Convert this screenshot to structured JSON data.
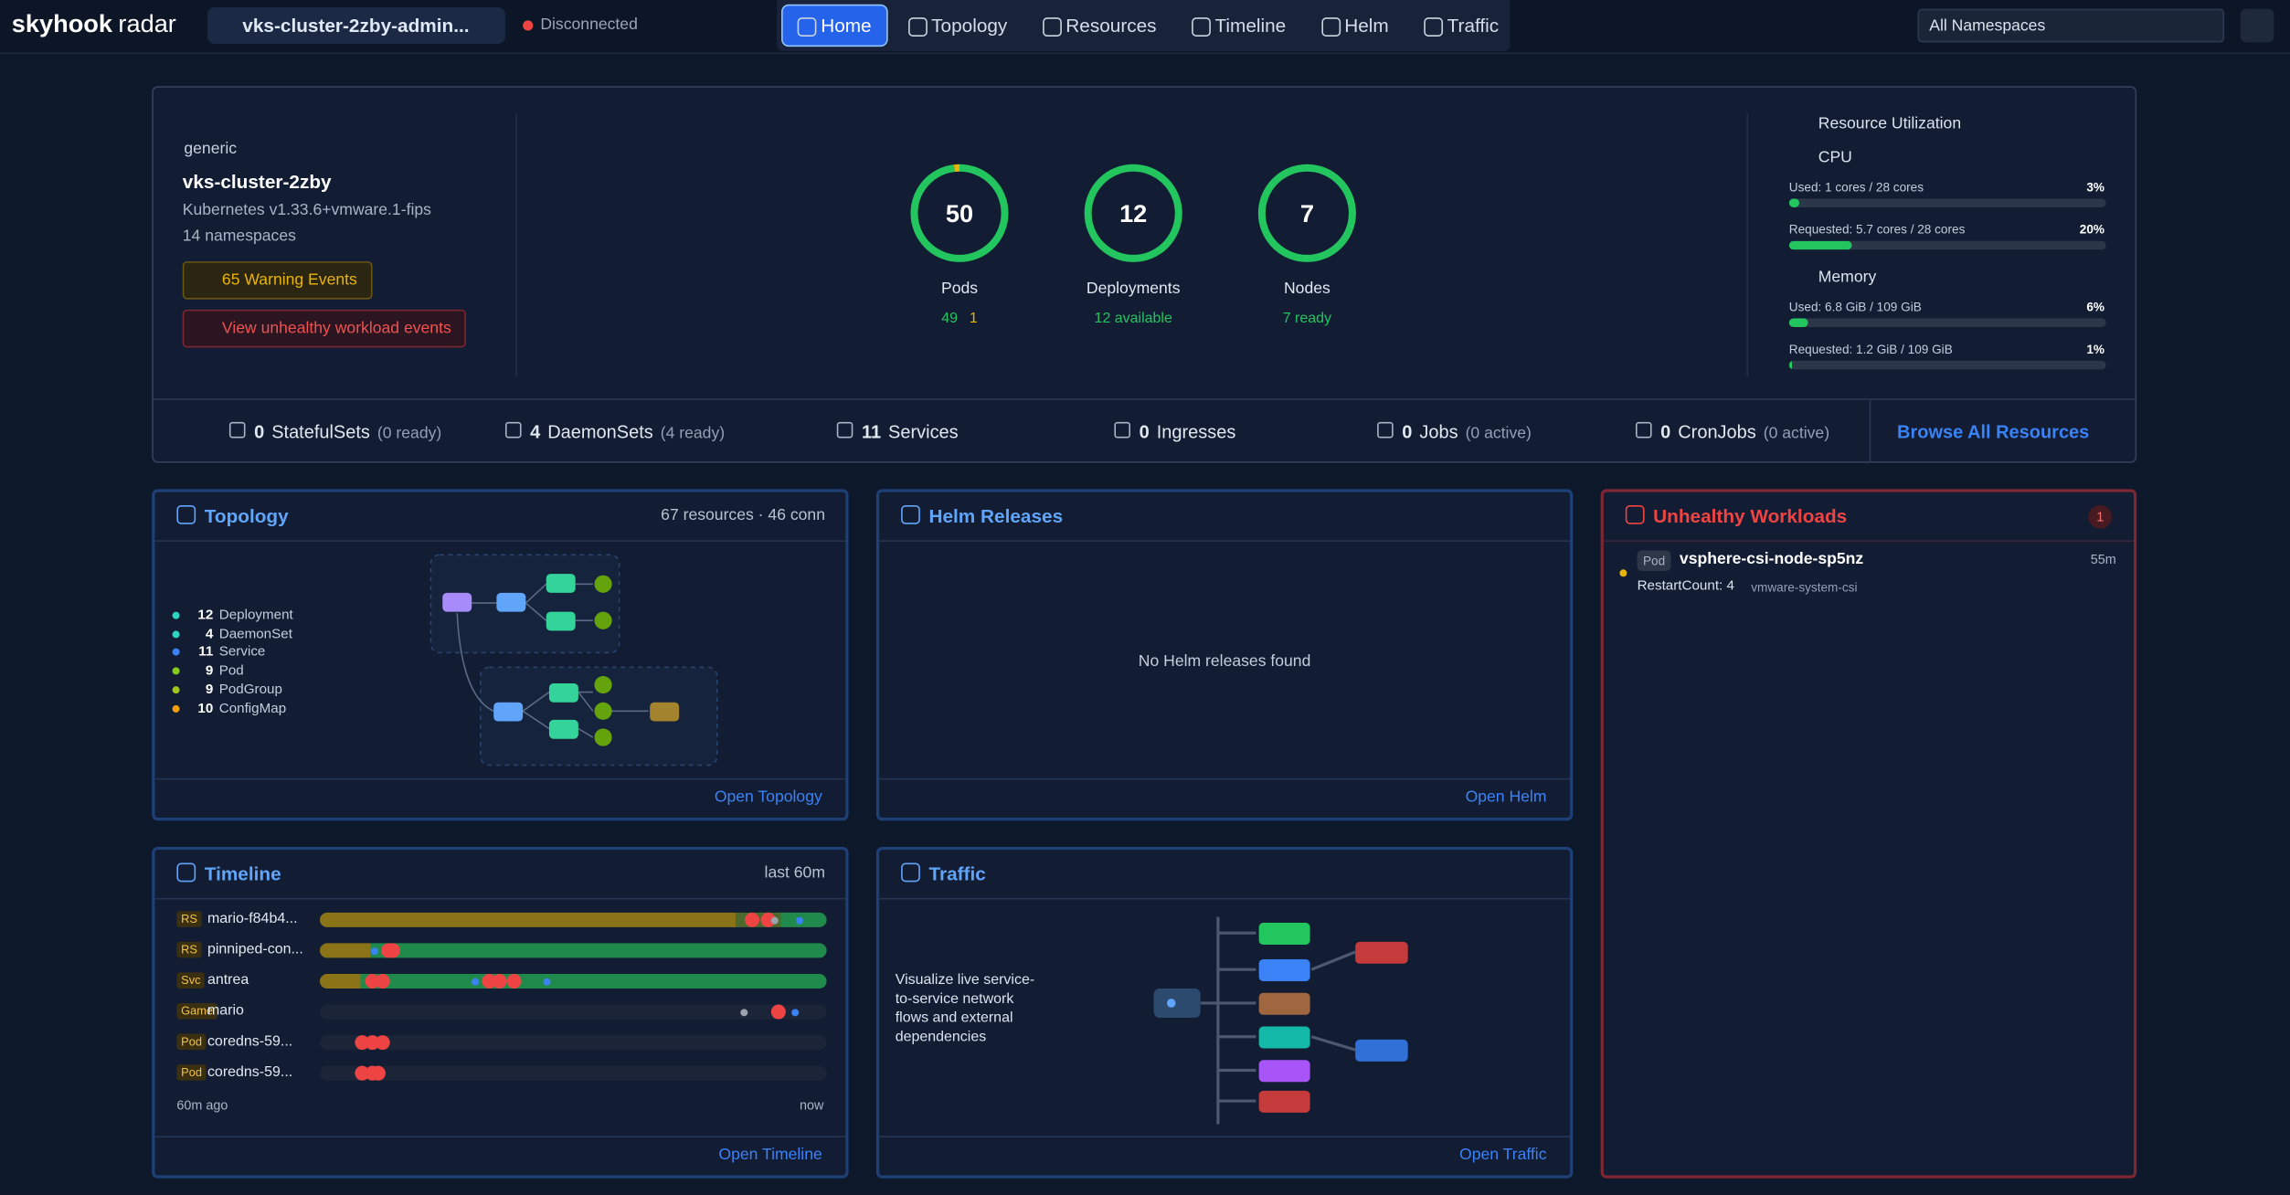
{
  "header": {
    "logo": "skyhook",
    "product": "radar",
    "cluster": "vks-cluster-2zby-admin...",
    "status": "Disconnected",
    "nav": [
      "Home",
      "Topology",
      "Resources",
      "Timeline",
      "Helm",
      "Traffic"
    ],
    "namespace": "All Namespaces"
  },
  "cluster": {
    "type": "generic",
    "name": "vks-cluster-2zby",
    "version": "Kubernetes v1.33.6+vmware.1-fips",
    "namespaces": "14 namespaces",
    "warning": "65 Warning Events",
    "unhealthy": "View unhealthy workload events"
  },
  "stats": [
    {
      "value": 50,
      "label": "Pods",
      "ok": 49,
      "warn": 1
    },
    {
      "value": 12,
      "label": "Deployments",
      "status": "12 available"
    },
    {
      "value": 7,
      "label": "Nodes",
      "status": "7 ready"
    }
  ],
  "utilization": {
    "title": "Resource Utilization",
    "groups": [
      {
        "name": "CPU",
        "rows": [
          {
            "text": "Used: 1 cores / 28 cores",
            "percent": {
              "value": 3,
              "label": "3%"
            }
          },
          {
            "text": "Requested: 5.7 cores / 28 cores",
            "percent": {
              "value": 20,
              "label": "20%"
            }
          }
        ]
      },
      {
        "name": "Memory",
        "rows": [
          {
            "text": "Used: 6.8 GiB / 109 GiB",
            "percent": {
              "value": 6,
              "label": "6%"
            }
          },
          {
            "text": "Requested: 1.2 GiB / 109 GiB",
            "percent": {
              "value": 1,
              "label": "1%"
            }
          }
        ]
      }
    ]
  },
  "resources": {
    "items": [
      {
        "count": 0,
        "name": "StatefulSets",
        "note": "(0 ready)"
      },
      {
        "count": 4,
        "name": "DaemonSets",
        "note": "(4 ready)"
      },
      {
        "count": 11,
        "name": "Services"
      },
      {
        "count": 0,
        "name": "Ingresses"
      },
      {
        "count": 0,
        "name": "Jobs",
        "note": "(0 active)"
      },
      {
        "count": 0,
        "name": "CronJobs",
        "note": "(0 active)"
      }
    ],
    "link": "Browse All Resources"
  },
  "topology": {
    "title": "Topology",
    "meta": "67 resources · 46 conn",
    "legend": [
      {
        "count": 12,
        "name": "Deployment"
      },
      {
        "count": 4,
        "name": "DaemonSet"
      },
      {
        "count": 11,
        "name": "Service"
      },
      {
        "count": 9,
        "name": "Pod"
      },
      {
        "count": 9,
        "name": "PodGroup"
      },
      {
        "count": 10,
        "name": "ConfigMap"
      }
    ],
    "link": "Open Topology"
  },
  "helm": {
    "title": "Helm Releases",
    "empty": "No Helm releases found",
    "link": "Open Helm"
  },
  "unhealthy": {
    "title": "Unhealthy Workloads",
    "count": 1,
    "items": [
      {
        "kind": "Pod",
        "name": "vsphere-csi-node-sp5nz",
        "age": "55m",
        "detail": "RestartCount: 4",
        "namespace": "vmware-system-csi"
      }
    ]
  },
  "timeline": {
    "title": "Timeline",
    "meta": "last 60m",
    "rows": [
      {
        "kind": "RS",
        "name": "mario-f84b4..."
      },
      {
        "kind": "RS",
        "name": "pinniped-con..."
      },
      {
        "kind": "Svc",
        "name": "antrea"
      },
      {
        "kind": "Game",
        "name": "mario"
      },
      {
        "kind": "Pod",
        "name": "coredns-59..."
      },
      {
        "kind": "Pod",
        "name": "coredns-59..."
      }
    ],
    "start": "60m ago",
    "end": "now",
    "link": "Open Timeline"
  },
  "traffic": {
    "title": "Traffic",
    "text": "Visualize live service-to-service network flows and external dependencies",
    "link": "Open Traffic"
  }
}
